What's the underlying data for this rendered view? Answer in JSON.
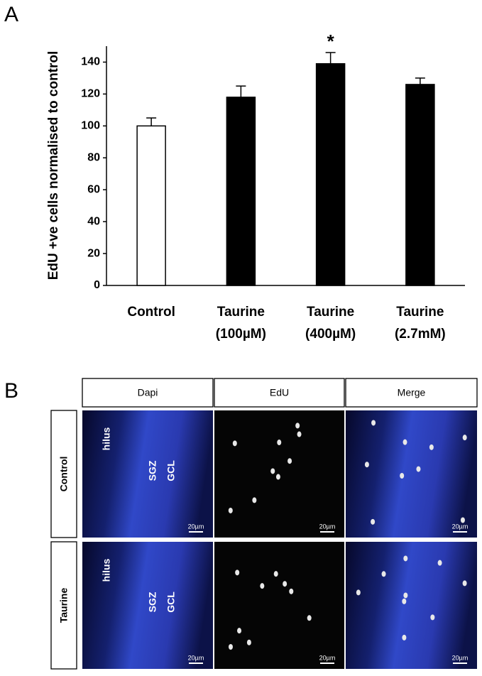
{
  "panel_labels": [
    "A",
    "B"
  ],
  "chart_data": {
    "type": "bar",
    "y_label": "EdU +ve cells  normalised to control",
    "categories": [
      [
        "Control"
      ],
      [
        "Taurine",
        "(100µM)"
      ],
      [
        "Taurine",
        "(400µM)"
      ],
      [
        "Taurine",
        "(2.7mM)"
      ]
    ],
    "values": [
      100,
      118,
      139,
      126
    ],
    "errors": [
      5,
      7,
      7,
      4
    ],
    "colors": [
      "#ffffff",
      "#000000",
      "#000000",
      "#000000"
    ],
    "significance": [
      null,
      null,
      "*",
      null
    ],
    "ylim": [
      0,
      150
    ],
    "yticks": [
      0,
      20,
      40,
      60,
      80,
      100,
      120,
      140
    ],
    "grid": false
  },
  "panel_b": {
    "columns": [
      "Dapi",
      "EdU",
      "Merge"
    ],
    "rows": [
      "Control",
      "Taurine"
    ],
    "region_labels": [
      "hilus",
      "SGZ",
      "GCL"
    ],
    "scale_bar": "20µm"
  }
}
